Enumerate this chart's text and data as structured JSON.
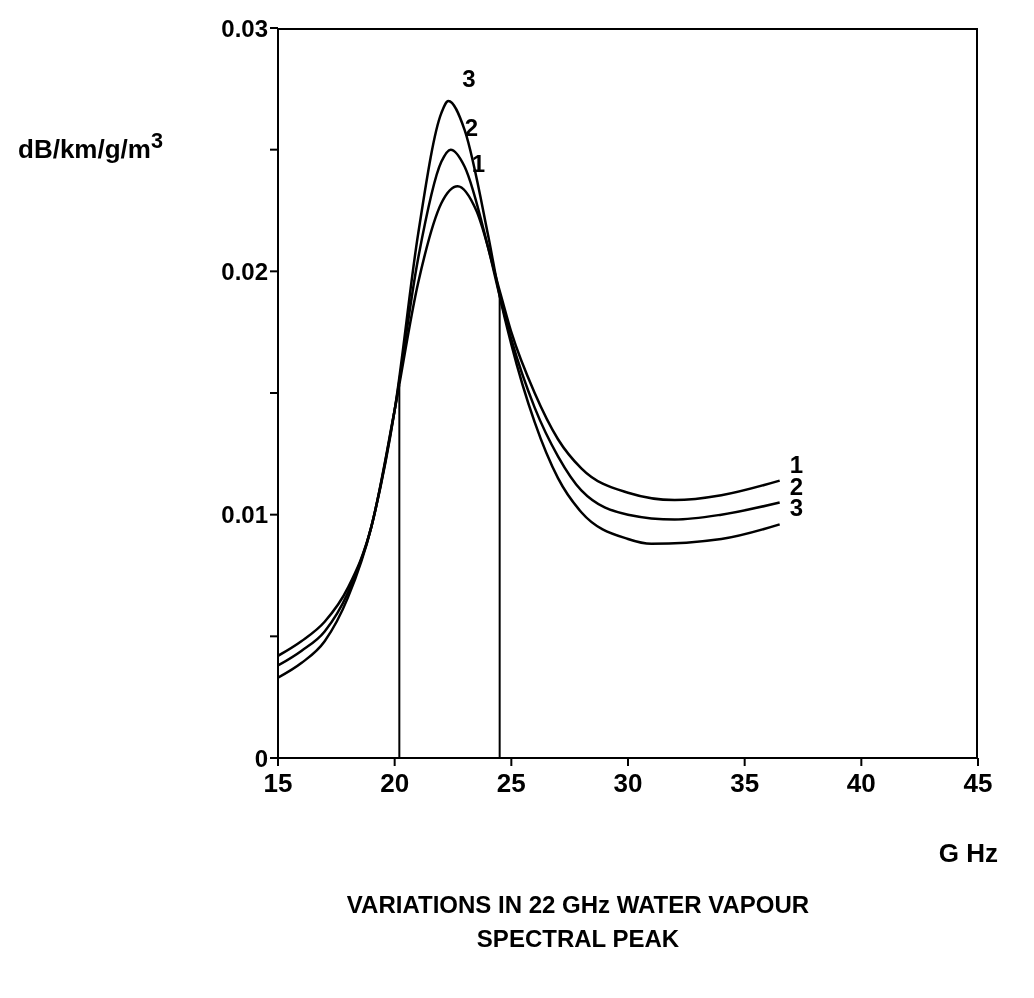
{
  "chart_data": {
    "type": "line",
    "title": "VARIATIONS IN 22 GHz WATER VAPOUR SPECTRAL PEAK",
    "xlabel": "G Hz",
    "ylabel": "dB/km/g/m$^{3}$",
    "xlim": [
      15,
      45
    ],
    "xticks": [
      15,
      20,
      25,
      30,
      35,
      40,
      45
    ],
    "ylim": [
      0,
      0.03
    ],
    "yticks": [
      0,
      {
        "value": 0.005,
        "label": null
      },
      0.01,
      {
        "value": 0.015,
        "label": null
      },
      0.02,
      {
        "value": 0.025,
        "label": null
      },
      0.03
    ],
    "grid": false,
    "legend": false,
    "marker": "none",
    "line_style": "solid",
    "ref_lines": [
      {
        "axis": "x",
        "value": 20.2,
        "color": "#000000"
      },
      {
        "axis": "x",
        "value": 24.5,
        "color": "#000000"
      }
    ],
    "series": [
      {
        "name": "1",
        "color": "#000000",
        "x": [
          15,
          16,
          17,
          18,
          19,
          20,
          21,
          22,
          22.7,
          23.5,
          24.5,
          25,
          26,
          27,
          28,
          30,
          32,
          34,
          36.5
        ],
        "values": [
          0.0042,
          0.0048,
          0.0056,
          0.007,
          0.0095,
          0.0143,
          0.0195,
          0.0228,
          0.0235,
          0.0225,
          0.0192,
          0.0175,
          0.015,
          0.0131,
          0.0119,
          0.0109,
          0.0106,
          0.0108,
          0.0114
        ]
      },
      {
        "name": "2",
        "color": "#000000",
        "x": [
          15,
          16,
          17,
          18,
          19,
          20,
          21,
          22,
          22.4,
          23,
          24,
          24.5,
          25,
          26,
          27,
          28,
          30,
          32,
          34,
          36.5
        ],
        "values": [
          0.0038,
          0.0044,
          0.0052,
          0.0068,
          0.0095,
          0.0143,
          0.0205,
          0.0245,
          0.025,
          0.0243,
          0.021,
          0.019,
          0.0172,
          0.0144,
          0.0124,
          0.011,
          0.01,
          0.0098,
          0.01,
          0.0105
        ]
      },
      {
        "name": "3",
        "color": "#000000",
        "x": [
          15,
          16,
          17,
          18,
          19,
          20,
          21,
          22,
          22.3,
          23,
          24,
          24.5,
          25,
          26,
          27,
          28,
          30,
          31,
          34,
          36.5
        ],
        "values": [
          0.0033,
          0.0039,
          0.0048,
          0.0066,
          0.0095,
          0.0143,
          0.0215,
          0.0265,
          0.027,
          0.0258,
          0.0215,
          0.019,
          0.017,
          0.0138,
          0.0115,
          0.0101,
          0.009,
          0.0088,
          0.009,
          0.0096
        ]
      }
    ]
  }
}
